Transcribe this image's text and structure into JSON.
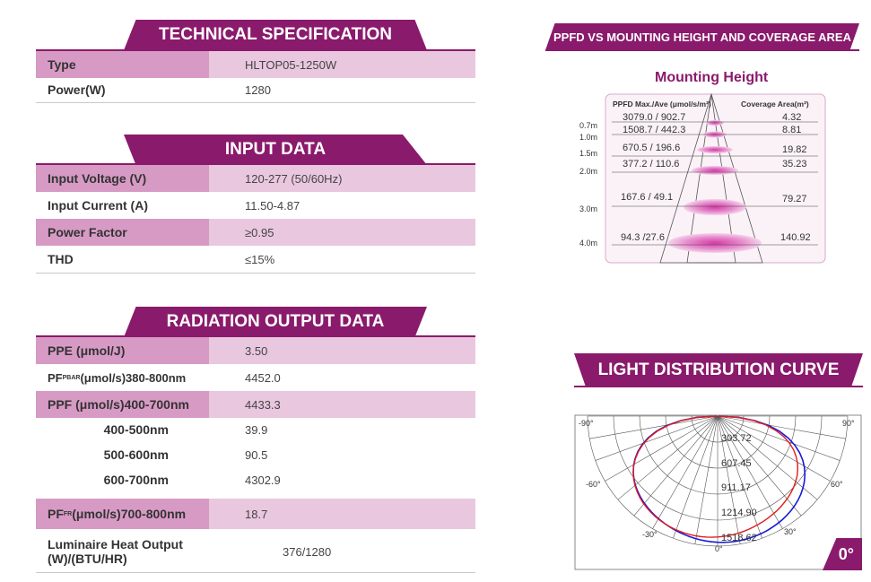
{
  "tech": {
    "banner": "TECHNICAL SPECIFICATION",
    "rows": [
      {
        "label": "Type",
        "value": "HLTOP05-1250W"
      },
      {
        "label": "Power(W)",
        "value": "1280"
      }
    ]
  },
  "input": {
    "banner": "INPUT DATA",
    "rows": [
      {
        "label": "Input Voltage (V)",
        "value": "120-277 (50/60Hz)"
      },
      {
        "label": "Input Current (A)",
        "value": "11.50-4.87"
      },
      {
        "label": "Power Factor",
        "value": "≥0.95"
      },
      {
        "label": "THD",
        "value": "≤15%"
      }
    ]
  },
  "radiation": {
    "banner": "RADIATION OUTPUT DATA",
    "rows": [
      {
        "label": "PPE (μmol/J)",
        "value": "3.50"
      },
      {
        "label_prefix": "PF",
        "label_sub": "PBAR",
        "label_suffix": " (μmol/s)380-800nm",
        "value": "4452.0"
      },
      {
        "label": "PPF (μmol/s)400-700nm",
        "value": "4433.3"
      },
      {
        "label": "400-500nm",
        "value": "39.9"
      },
      {
        "label": "500-600nm",
        "value": "90.5"
      },
      {
        "label": "600-700nm",
        "value": "4302.9"
      },
      {
        "label_prefix": "PF",
        "label_sub": "FR",
        "label_suffix": " (μmol/s)700-800nm",
        "value": "18.7"
      },
      {
        "label_line1": "Luminaire Heat Output",
        "label_line2": "(W)/(BTU/HR)",
        "value": "376/1280"
      }
    ]
  },
  "ppfd": {
    "banner": "PPFD VS MOUNTING HEIGHT AND COVERAGE AREA",
    "title": "Mounting Height",
    "col_left": "PPFD Max./Ave (μmol/s/m²)",
    "col_right": "Coverage Area(m²)",
    "rows": [
      {
        "height": "0.7m",
        "ppfd": "3079.0 / 902.7",
        "area": "4.32"
      },
      {
        "height": "1.0m",
        "ppfd": "1508.7 / 442.3",
        "area": "8.81"
      },
      {
        "height": "1.5m",
        "ppfd": "670.5 / 196.6",
        "area": "19.82"
      },
      {
        "height": "2.0m",
        "ppfd": "377.2 / 110.6",
        "area": "35.23"
      },
      {
        "height": "3.0m",
        "ppfd": "167.6 / 49.1",
        "area": "79.27"
      },
      {
        "height": "4.0m",
        "ppfd": "94.3 /27.6",
        "area": "140.92"
      }
    ]
  },
  "ldc": {
    "banner": "LIGHT DISTRIBUTION CURVE",
    "angle_labels": {
      "m90": "-90°",
      "p90": "90°",
      "m60": "-60°",
      "p60": "60°",
      "m30": "-30°",
      "p30": "30°",
      "zero": "0°"
    },
    "rings": [
      "303.72",
      "607.45",
      "911.17",
      "1214.90",
      "1518.62"
    ],
    "corner": "0°",
    "colors": {
      "series_a": "#1a1ad6",
      "series_b": "#e01c1c"
    }
  },
  "colors": {
    "brand": "#8a1a6c",
    "shade_dark": "#d79ac5",
    "shade_light": "#e9c7df"
  }
}
